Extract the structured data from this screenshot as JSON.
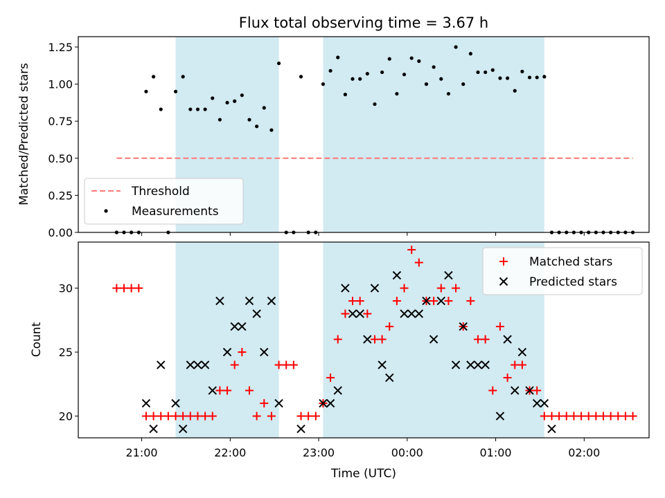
{
  "chart_data": [
    {
      "type": "scatter",
      "title": "Flux total observing time = 3.67 h",
      "ylabel": "Matched/Predicted stars",
      "xlabel": "",
      "ylim": [
        0,
        1.32
      ],
      "yticks": [
        0.0,
        0.25,
        0.5,
        0.75,
        1.0,
        1.25
      ],
      "ytick_labels": [
        "0.00",
        "0.25",
        "0.50",
        "0.75",
        "1.00",
        "1.25"
      ],
      "grid": false,
      "legend": "lower-left",
      "highlight_color": "#add8e6",
      "threshold": {
        "name": "Threshold",
        "value": 0.5,
        "x_start": "20:43",
        "x_end": "02:33",
        "color": "#ff7777"
      },
      "series": [
        {
          "name": "Measurements",
          "color": "#000000",
          "points": [
            [
              "20:43",
              0.0
            ],
            [
              "20:48",
              0.0
            ],
            [
              "20:53",
              0.0
            ],
            [
              "20:58",
              0.0
            ],
            [
              "21:03",
              0.95
            ],
            [
              "21:08",
              1.05
            ],
            [
              "21:13",
              0.83
            ],
            [
              "21:18",
              0.0
            ],
            [
              "21:23",
              0.95
            ],
            [
              "21:28",
              1.05
            ],
            [
              "21:33",
              0.83
            ],
            [
              "21:38",
              0.83
            ],
            [
              "21:43",
              0.83
            ],
            [
              "21:48",
              0.905
            ],
            [
              "21:53",
              0.76
            ],
            [
              "21:58",
              0.875
            ],
            [
              "22:03",
              0.885
            ],
            [
              "22:08",
              0.925
            ],
            [
              "22:13",
              0.76
            ],
            [
              "22:18",
              0.715
            ],
            [
              "22:23",
              0.84
            ],
            [
              "22:28",
              0.69
            ],
            [
              "22:33",
              1.14
            ],
            [
              "22:38",
              0.0
            ],
            [
              "22:43",
              0.0
            ],
            [
              "22:48",
              1.05
            ],
            [
              "22:53",
              0.0
            ],
            [
              "22:58",
              0.0
            ],
            [
              "23:03",
              1.0
            ],
            [
              "23:08",
              1.09
            ],
            [
              "23:13",
              1.18
            ],
            [
              "23:18",
              0.93
            ],
            [
              "23:23",
              1.035
            ],
            [
              "23:28",
              1.035
            ],
            [
              "23:33",
              1.07
            ],
            [
              "23:38",
              0.865
            ],
            [
              "23:43",
              1.08
            ],
            [
              "23:48",
              1.17
            ],
            [
              "23:53",
              0.935
            ],
            [
              "23:58",
              1.065
            ],
            [
              "00:03",
              1.175
            ],
            [
              "00:08",
              1.155
            ],
            [
              "00:13",
              1.0
            ],
            [
              "00:18",
              1.115
            ],
            [
              "00:23",
              1.035
            ],
            [
              "00:28",
              0.935
            ],
            [
              "00:33",
              1.25
            ],
            [
              "00:38",
              1.0
            ],
            [
              "00:43",
              1.205
            ],
            [
              "00:48",
              1.08
            ],
            [
              "00:53",
              1.08
            ],
            [
              "00:58",
              1.095
            ],
            [
              "01:03",
              1.04
            ],
            [
              "01:08",
              1.04
            ],
            [
              "01:13",
              0.955
            ],
            [
              "01:18",
              1.085
            ],
            [
              "01:23",
              1.045
            ],
            [
              "01:28",
              1.045
            ],
            [
              "01:33",
              1.05
            ],
            [
              "01:38",
              0.0
            ],
            [
              "01:43",
              0.0
            ],
            [
              "01:48",
              0.0
            ],
            [
              "01:53",
              0.0
            ],
            [
              "01:58",
              0.0
            ],
            [
              "02:03",
              0.0
            ],
            [
              "02:08",
              0.0
            ],
            [
              "02:13",
              0.0
            ],
            [
              "02:18",
              0.0
            ],
            [
              "02:23",
              0.0
            ],
            [
              "02:28",
              0.0
            ],
            [
              "02:33",
              0.0
            ]
          ]
        }
      ]
    },
    {
      "type": "scatter",
      "title": "",
      "xlabel": "Time (UTC)",
      "ylabel": "Count",
      "xticks": [
        "21:00",
        "22:00",
        "23:00",
        "00:00",
        "01:00",
        "02:00"
      ],
      "ylim": [
        18.3,
        33.6
      ],
      "yticks": [
        20,
        25,
        30
      ],
      "ytick_labels": [
        "20",
        "25",
        "30"
      ],
      "grid": false,
      "legend": "top-right",
      "highlight_color": "#add8e6",
      "highlight_ranges": [
        [
          "21:23",
          "22:33"
        ],
        [
          "23:03",
          "01:33"
        ]
      ],
      "series": [
        {
          "name": "Matched stars",
          "marker": "+",
          "color": "#ff0000",
          "points": [
            [
              "20:43",
              30
            ],
            [
              "20:48",
              30
            ],
            [
              "20:53",
              30
            ],
            [
              "20:58",
              30
            ],
            [
              "21:03",
              20
            ],
            [
              "21:08",
              20
            ],
            [
              "21:13",
              20
            ],
            [
              "21:18",
              20
            ],
            [
              "21:23",
              20
            ],
            [
              "21:28",
              20
            ],
            [
              "21:33",
              20
            ],
            [
              "21:38",
              20
            ],
            [
              "21:43",
              20
            ],
            [
              "21:48",
              20
            ],
            [
              "21:53",
              22
            ],
            [
              "21:58",
              22
            ],
            [
              "22:03",
              24
            ],
            [
              "22:08",
              25
            ],
            [
              "22:13",
              22
            ],
            [
              "22:18",
              20
            ],
            [
              "22:23",
              21
            ],
            [
              "22:28",
              20
            ],
            [
              "22:33",
              24
            ],
            [
              "22:38",
              24
            ],
            [
              "22:43",
              24
            ],
            [
              "22:48",
              20
            ],
            [
              "22:53",
              20
            ],
            [
              "22:58",
              20
            ],
            [
              "23:03",
              21
            ],
            [
              "23:08",
              23
            ],
            [
              "23:13",
              26
            ],
            [
              "23:18",
              28
            ],
            [
              "23:23",
              29
            ],
            [
              "23:28",
              29
            ],
            [
              "23:33",
              28
            ],
            [
              "23:38",
              26
            ],
            [
              "23:43",
              26
            ],
            [
              "23:48",
              27
            ],
            [
              "23:53",
              29
            ],
            [
              "23:58",
              30
            ],
            [
              "00:03",
              33
            ],
            [
              "00:08",
              32
            ],
            [
              "00:13",
              29
            ],
            [
              "00:18",
              29
            ],
            [
              "00:23",
              30
            ],
            [
              "00:28",
              29
            ],
            [
              "00:33",
              30
            ],
            [
              "00:38",
              27
            ],
            [
              "00:43",
              29
            ],
            [
              "00:48",
              26
            ],
            [
              "00:53",
              26
            ],
            [
              "00:58",
              22
            ],
            [
              "01:03",
              27
            ],
            [
              "01:08",
              23
            ],
            [
              "01:13",
              24
            ],
            [
              "01:18",
              24
            ],
            [
              "01:23",
              22
            ],
            [
              "01:28",
              22
            ],
            [
              "01:33",
              20
            ],
            [
              "01:38",
              20
            ],
            [
              "01:43",
              20
            ],
            [
              "01:48",
              20
            ],
            [
              "01:53",
              20
            ],
            [
              "01:58",
              20
            ],
            [
              "02:03",
              20
            ],
            [
              "02:08",
              20
            ],
            [
              "02:13",
              20
            ],
            [
              "02:18",
              20
            ],
            [
              "02:23",
              20
            ],
            [
              "02:28",
              20
            ],
            [
              "02:33",
              20
            ]
          ]
        },
        {
          "name": "Predicted stars",
          "marker": "x",
          "color": "#000000",
          "points": [
            [
              "21:03",
              21
            ],
            [
              "21:08",
              19
            ],
            [
              "21:13",
              24
            ],
            [
              "21:23",
              21
            ],
            [
              "21:28",
              19
            ],
            [
              "21:33",
              24
            ],
            [
              "21:38",
              24
            ],
            [
              "21:43",
              24
            ],
            [
              "21:48",
              22
            ],
            [
              "21:53",
              29
            ],
            [
              "21:58",
              25
            ],
            [
              "22:03",
              27
            ],
            [
              "22:08",
              27
            ],
            [
              "22:13",
              29
            ],
            [
              "22:18",
              28
            ],
            [
              "22:23",
              25
            ],
            [
              "22:28",
              29
            ],
            [
              "22:33",
              21
            ],
            [
              "22:48",
              19
            ],
            [
              "23:03",
              21
            ],
            [
              "23:08",
              21
            ],
            [
              "23:13",
              22
            ],
            [
              "23:18",
              30
            ],
            [
              "23:23",
              28
            ],
            [
              "23:28",
              28
            ],
            [
              "23:33",
              26
            ],
            [
              "23:38",
              30
            ],
            [
              "23:43",
              24
            ],
            [
              "23:48",
              23
            ],
            [
              "23:53",
              31
            ],
            [
              "23:58",
              28
            ],
            [
              "00:03",
              28
            ],
            [
              "00:08",
              28
            ],
            [
              "00:13",
              29
            ],
            [
              "00:18",
              26
            ],
            [
              "00:23",
              29
            ],
            [
              "00:28",
              31
            ],
            [
              "00:33",
              24
            ],
            [
              "00:38",
              27
            ],
            [
              "00:43",
              24
            ],
            [
              "00:48",
              24
            ],
            [
              "00:53",
              24
            ],
            [
              "01:03",
              20
            ],
            [
              "01:08",
              26
            ],
            [
              "01:13",
              22
            ],
            [
              "01:18",
              25
            ],
            [
              "01:23",
              22
            ],
            [
              "01:28",
              21
            ],
            [
              "01:33",
              21
            ],
            [
              "01:38",
              19
            ]
          ]
        }
      ]
    }
  ]
}
